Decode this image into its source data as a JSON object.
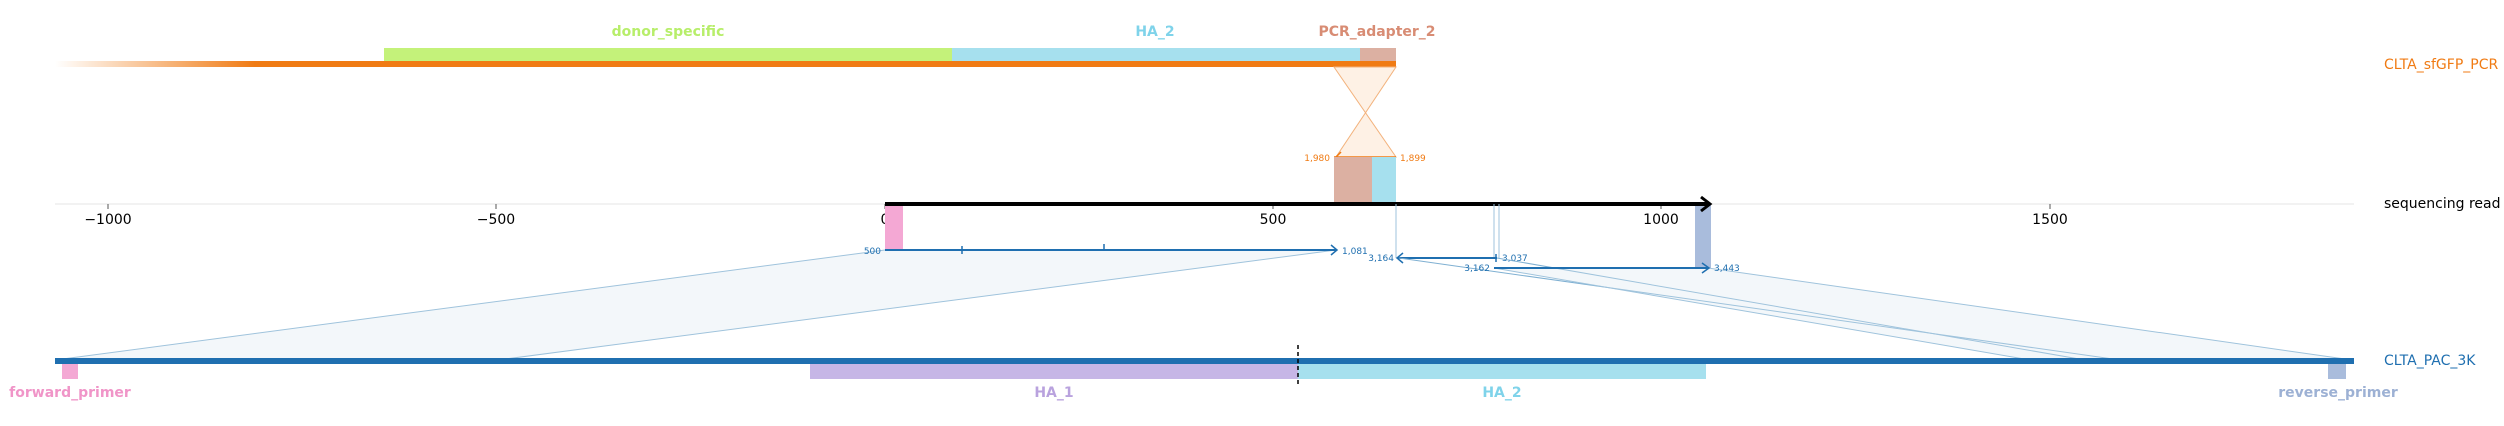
{
  "top_track": {
    "name": "CLTA_sfGFP_PCR",
    "color": "#f07b14",
    "features": [
      {
        "label": "donor_specific",
        "color": "#c4f27a",
        "label_color": "#b7ee6a"
      },
      {
        "label": "HA_2",
        "color": "#a6e0ee",
        "label_color": "#7fd3ea"
      },
      {
        "label": "PCR_adapter_2",
        "color": "#dcb0a2",
        "label_color": "#d88c74"
      }
    ],
    "coord_labels": {
      "left": "1,980",
      "right": "1,899"
    }
  },
  "read_track": {
    "name": "sequencing read",
    "axis_ticks": [
      "−1000",
      "−500",
      "0",
      "500",
      "1000",
      "1500"
    ]
  },
  "alignment_labels": {
    "a_start": "500",
    "a_end": "1,081",
    "b_start": "3,164",
    "b_end": "3,037",
    "c_start": "3,162",
    "c_end": "3,443"
  },
  "bottom_track": {
    "name": "CLTA_PAC_3K",
    "color": "#1f6fb0",
    "features": [
      {
        "label": "forward_primer",
        "color": "#f4a8d4",
        "label_color": "#f095c8"
      },
      {
        "label": "HA_1",
        "color": "#c6b6e6",
        "label_color": "#b9a2de"
      },
      {
        "label": "HA_2",
        "color": "#a6e0ee",
        "label_color": "#7fd3ea"
      },
      {
        "label": "reverse_primer",
        "color": "#a9bcdc",
        "label_color": "#9db1d4"
      }
    ]
  }
}
